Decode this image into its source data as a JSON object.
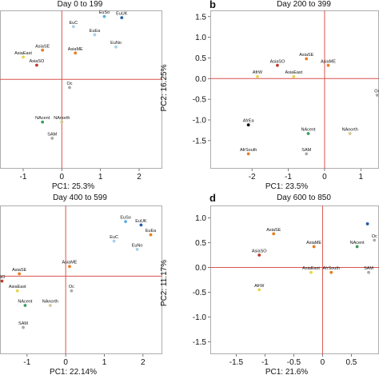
{
  "colors": {
    "ref_line": "#d9534f",
    "axis": "#555555",
    "frame": "#999999"
  },
  "chart_data": [
    {
      "type": "scatter",
      "panel_label": "",
      "title": "Day 0 to 199",
      "xlabel": "PC1: 25.3%",
      "ylabel": "",
      "xlim": [
        -1.6,
        2.6
      ],
      "ylim": [
        1.7,
        -2.2
      ],
      "xticks": [
        -1,
        0,
        1,
        2
      ],
      "yticks": [],
      "ref_lines": {
        "x": 0,
        "y": 0
      },
      "points": [
        {
          "label": "SAM",
          "x": -0.25,
          "y": -1.45,
          "color": "#aaaaaa"
        },
        {
          "label": "NAcent",
          "x": -0.5,
          "y": -1.05,
          "color": "#3a9d5d"
        },
        {
          "label": "NAnorth",
          "x": 0.0,
          "y": -1.05,
          "color": "#d4c890"
        },
        {
          "label": "Oc",
          "x": 0.2,
          "y": -0.2,
          "color": "#aaaaaa"
        },
        {
          "label": "AsiaSO",
          "x": -0.65,
          "y": 0.35,
          "color": "#c0392b"
        },
        {
          "label": "AsiaEast",
          "x": -1.0,
          "y": 0.55,
          "color": "#e8d44d"
        },
        {
          "label": "AsiaSE",
          "x": -0.5,
          "y": 0.72,
          "color": "#e67e22"
        },
        {
          "label": "AsiaME",
          "x": 0.35,
          "y": 0.65,
          "color": "#e67e22"
        },
        {
          "label": "EuNo",
          "x": 1.4,
          "y": 0.8,
          "color": "#a8d0e6"
        },
        {
          "label": "EuEa",
          "x": 0.85,
          "y": 1.1,
          "color": "#a8d0e6"
        },
        {
          "label": "EuC",
          "x": 0.3,
          "y": 1.3,
          "color": "#a8d0e6"
        },
        {
          "label": "EuUK",
          "x": 1.55,
          "y": 1.52,
          "color": "#1f5fa8"
        },
        {
          "label": "EuSo",
          "x": 1.1,
          "y": 1.55,
          "color": "#5dade2"
        }
      ]
    },
    {
      "type": "scatter",
      "panel_label": "b",
      "title": "Day 200 to 399",
      "xlabel": "PC1: 23.5%",
      "ylabel": "PC2: 16.25%",
      "xlim": [
        -3.15,
        1.5
      ],
      "ylim": [
        1.65,
        -2.18
      ],
      "xticks": [
        -2,
        -1,
        0,
        1
      ],
      "yticks": [
        -1.5,
        -1,
        -0.5,
        0,
        0.5,
        1,
        1.5
      ],
      "yticklabels": [
        "-1.5",
        "-1.0",
        "-0.5",
        "0.0",
        "0.5",
        "1.0",
        "1.5"
      ],
      "ref_lines": {
        "x": 0,
        "y": 0
      },
      "points": [
        {
          "label": "AfrSouth",
          "x": -2.1,
          "y": -1.82,
          "color": "#e67e22"
        },
        {
          "label": "SAM",
          "x": -0.5,
          "y": -1.82,
          "color": "#aaaaaa"
        },
        {
          "label": "NAcent",
          "x": -0.45,
          "y": -1.33,
          "color": "#3a9d5d"
        },
        {
          "label": "NAnorth",
          "x": 0.7,
          "y": -1.33,
          "color": "#d4c890"
        },
        {
          "label": "AfrEa",
          "x": -2.1,
          "y": -1.12,
          "color": "#111111"
        },
        {
          "label": "Oc",
          "x": 1.45,
          "y": -0.4,
          "color": "#aaaaaa"
        },
        {
          "label": "AfrW",
          "x": -1.85,
          "y": 0.05,
          "color": "#e8d44d"
        },
        {
          "label": "AsiaEast",
          "x": -0.85,
          "y": 0.05,
          "color": "#e8d44d"
        },
        {
          "label": "AsiaSO",
          "x": -1.3,
          "y": 0.32,
          "color": "#c0392b"
        },
        {
          "label": "AsiaME",
          "x": 0.1,
          "y": 0.32,
          "color": "#e67e22"
        },
        {
          "label": "AsiaSE",
          "x": -0.5,
          "y": 0.48,
          "color": "#e67e22"
        }
      ]
    },
    {
      "type": "scatter",
      "panel_label": "",
      "title": "Day 400 to 599",
      "xlabel": "PC1: 22.14%",
      "ylabel": "",
      "xlim": [
        -1.7,
        2.5
      ],
      "ylim": [
        1.45,
        -1.6
      ],
      "xticks": [
        -1,
        0,
        1,
        2
      ],
      "yticks": [],
      "ref_lines": {
        "x": 0,
        "y": 0
      },
      "points": [
        {
          "label": "SAM",
          "x": -1.1,
          "y": -1.05,
          "color": "#aaaaaa"
        },
        {
          "label": "NAcent",
          "x": -1.05,
          "y": -0.6,
          "color": "#3a9d5d"
        },
        {
          "label": "NAnorth",
          "x": -0.4,
          "y": -0.6,
          "color": "#d4c890"
        },
        {
          "label": "AsiaEast",
          "x": -1.25,
          "y": -0.3,
          "color": "#e8d44d"
        },
        {
          "label": "Oc",
          "x": 0.15,
          "y": -0.3,
          "color": "#aaaaaa"
        },
        {
          "label": "SO",
          "x": -1.65,
          "y": -0.1,
          "color": "#c0392b"
        },
        {
          "label": "AsiaSE",
          "x": -1.2,
          "y": 0.05,
          "color": "#e67e22"
        },
        {
          "label": "AsiaME",
          "x": 0.1,
          "y": 0.2,
          "color": "#e67e22"
        },
        {
          "label": "EuNo",
          "x": 1.85,
          "y": 0.55,
          "color": "#a8d0e6"
        },
        {
          "label": "EuC",
          "x": 1.25,
          "y": 0.72,
          "color": "#a8d0e6"
        },
        {
          "label": "EuEa",
          "x": 2.2,
          "y": 0.85,
          "color": "#e67e22"
        },
        {
          "label": "EuUK",
          "x": 1.95,
          "y": 1.05,
          "color": "#1f5fa8"
        },
        {
          "label": "EuSo",
          "x": 1.55,
          "y": 1.12,
          "color": "#5dade2"
        }
      ]
    },
    {
      "type": "scatter",
      "panel_label": "d",
      "title": "Day 600 to 850",
      "xlabel": "PC1: 21.6%",
      "ylabel": "PC2: 11.17%",
      "xlim": [
        -1.95,
        0.98
      ],
      "ylim": [
        1.25,
        -1.75
      ],
      "xticks": [
        -1.5,
        -1,
        -0.5,
        0,
        0.5
      ],
      "yticks": [
        -1.5,
        -1,
        -0.5,
        0,
        0.5,
        1
      ],
      "yticklabels": [
        "-1.5",
        "-1.0",
        "-0.5",
        "0.0",
        "0.5",
        "1.0"
      ],
      "ref_lines": {
        "x": 0,
        "y": 0
      },
      "points": [
        {
          "label": "AfrW",
          "x": -1.1,
          "y": -0.45,
          "color": "#e8d44d"
        },
        {
          "label": "AsiaEast",
          "x": -0.2,
          "y": -0.1,
          "color": "#e8d44d"
        },
        {
          "label": "AfrSouth",
          "x": 0.15,
          "y": -0.1,
          "color": "#e67e22"
        },
        {
          "label": "SAM",
          "x": 0.8,
          "y": -0.1,
          "color": "#aaaaaa"
        },
        {
          "label": "AsiaSO",
          "x": -1.1,
          "y": 0.25,
          "color": "#c0392b"
        },
        {
          "label": "AsiaME",
          "x": -0.15,
          "y": 0.42,
          "color": "#e67e22"
        },
        {
          "label": "NAcent",
          "x": 0.6,
          "y": 0.42,
          "color": "#3a9d5d"
        },
        {
          "label": "Oc",
          "x": 0.9,
          "y": 0.55,
          "color": "#aaaaaa"
        },
        {
          "label": "AsiaSE",
          "x": -0.85,
          "y": 0.68,
          "color": "#e67e22"
        },
        {
          "label": "",
          "x": 0.78,
          "y": 0.88,
          "color": "#1f5fa8"
        }
      ]
    }
  ]
}
